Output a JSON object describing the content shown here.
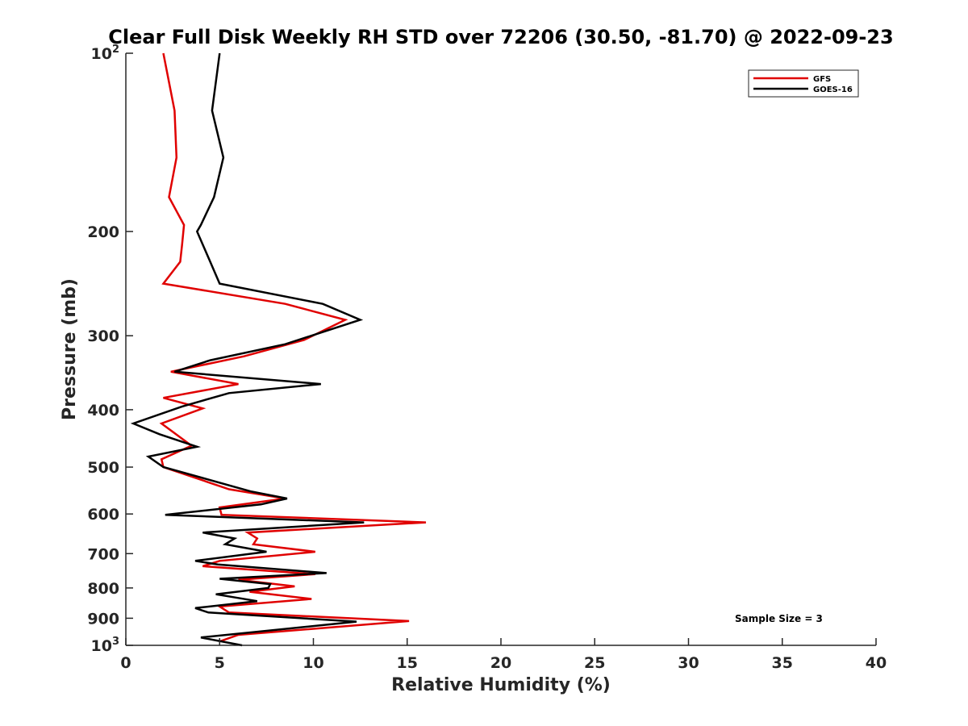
{
  "chart_data": {
    "type": "line",
    "title": "Clear Full Disk Weekly RH STD over 72206 (30.50, -81.70) @ 2022-09-23",
    "xlabel": "Relative Humidity (%)",
    "ylabel": "Pressure (mb)",
    "xlim": [
      0,
      40
    ],
    "ylim": [
      100,
      1000
    ],
    "yscale": "log",
    "yreversed": true,
    "x_ticks": [
      0,
      5,
      10,
      15,
      20,
      25,
      30,
      35,
      40
    ],
    "x_tick_labels": [
      "0",
      "5",
      "10",
      "15",
      "20",
      "25",
      "30",
      "35",
      "40"
    ],
    "y_ticks": [
      100,
      200,
      300,
      400,
      500,
      600,
      700,
      800,
      900,
      1000
    ],
    "y_tick_labels": [
      {
        "base": "10",
        "sup": "2"
      },
      {
        "base": "200",
        "sup": ""
      },
      {
        "base": "300",
        "sup": ""
      },
      {
        "base": "400",
        "sup": ""
      },
      {
        "base": "500",
        "sup": ""
      },
      {
        "base": "600",
        "sup": ""
      },
      {
        "base": "700",
        "sup": ""
      },
      {
        "base": "800",
        "sup": ""
      },
      {
        "base": "900",
        "sup": ""
      },
      {
        "base": "10",
        "sup": "3"
      }
    ],
    "grid": false,
    "legend_position": "top-right",
    "annotation": "Sample Size = 3",
    "series": [
      {
        "name": "GFS",
        "color": "#e00000",
        "points": [
          [
            2.0,
            100
          ],
          [
            2.6,
            125
          ],
          [
            2.7,
            150
          ],
          [
            2.3,
            175
          ],
          [
            3.1,
            195
          ],
          [
            3.0,
            210
          ],
          [
            2.9,
            225
          ],
          [
            2.0,
            245
          ],
          [
            8.5,
            265
          ],
          [
            11.7,
            282
          ],
          [
            9.5,
            305
          ],
          [
            6.3,
            325
          ],
          [
            2.4,
            345
          ],
          [
            6.0,
            362
          ],
          [
            2.0,
            382
          ],
          [
            4.1,
            398
          ],
          [
            1.9,
            422
          ],
          [
            3.5,
            460
          ],
          [
            1.9,
            485
          ],
          [
            2.0,
            500
          ],
          [
            5.5,
            545
          ],
          [
            8.5,
            565
          ],
          [
            5.0,
            585
          ],
          [
            5.1,
            602
          ],
          [
            16.0,
            620
          ],
          [
            6.5,
            645
          ],
          [
            7.0,
            660
          ],
          [
            6.8,
            675
          ],
          [
            10.1,
            695
          ],
          [
            5.0,
            720
          ],
          [
            4.1,
            735
          ],
          [
            10.1,
            758
          ],
          [
            6.0,
            775
          ],
          [
            9.0,
            795
          ],
          [
            6.6,
            812
          ],
          [
            9.9,
            835
          ],
          [
            5.0,
            860
          ],
          [
            5.5,
            880
          ],
          [
            15.1,
            910
          ],
          [
            6.0,
            960
          ],
          [
            5.0,
            985
          ]
        ]
      },
      {
        "name": "GOES-16",
        "color": "#000000",
        "points": [
          [
            5.0,
            100
          ],
          [
            4.6,
            125
          ],
          [
            5.2,
            150
          ],
          [
            4.7,
            175
          ],
          [
            4.0,
            195
          ],
          [
            3.8,
            200
          ],
          [
            4.5,
            225
          ],
          [
            5.0,
            245
          ],
          [
            10.5,
            265
          ],
          [
            12.5,
            282
          ],
          [
            8.5,
            310
          ],
          [
            4.5,
            330
          ],
          [
            2.6,
            345
          ],
          [
            10.4,
            362
          ],
          [
            5.5,
            375
          ],
          [
            3.0,
            395
          ],
          [
            0.4,
            422
          ],
          [
            1.8,
            440
          ],
          [
            3.8,
            462
          ],
          [
            1.2,
            480
          ],
          [
            2.0,
            500
          ],
          [
            6.7,
            550
          ],
          [
            8.6,
            565
          ],
          [
            7.2,
            578
          ],
          [
            2.1,
            602
          ],
          [
            12.7,
            620
          ],
          [
            4.1,
            645
          ],
          [
            5.8,
            660
          ],
          [
            5.3,
            675
          ],
          [
            7.5,
            695
          ],
          [
            3.7,
            720
          ],
          [
            4.9,
            730
          ],
          [
            10.7,
            755
          ],
          [
            5.0,
            772
          ],
          [
            7.7,
            788
          ],
          [
            7.6,
            800
          ],
          [
            4.8,
            820
          ],
          [
            7.0,
            842
          ],
          [
            3.7,
            865
          ],
          [
            4.4,
            880
          ],
          [
            12.3,
            912
          ],
          [
            4.0,
            970
          ],
          [
            6.2,
            1000
          ]
        ]
      }
    ]
  }
}
